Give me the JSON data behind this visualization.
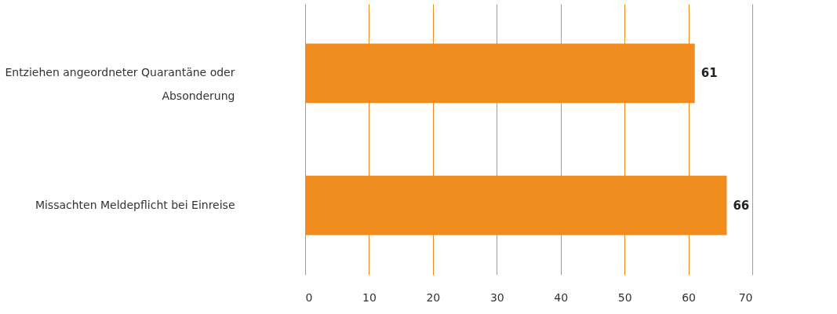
{
  "chart_data": {
    "type": "bar",
    "orientation": "horizontal",
    "categories": [
      "Entziehen angeordneter Quarantäne oder Absonderung",
      "Missachten Meldepflicht bei Einreise"
    ],
    "values": [
      61,
      66
    ],
    "color": "#f08c1e",
    "xlim": [
      0,
      70
    ],
    "xticks": [
      0,
      10,
      20,
      30,
      40,
      50,
      60,
      70
    ],
    "grid": "x",
    "data_labels": true
  }
}
